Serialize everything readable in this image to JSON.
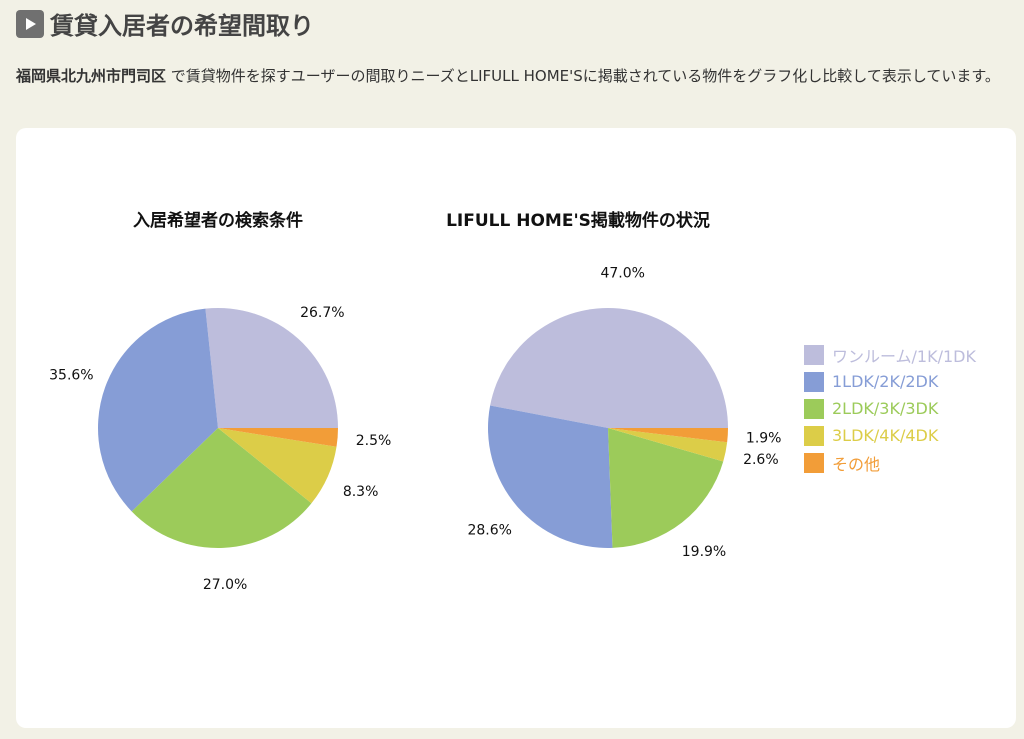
{
  "header": {
    "title": "賃貸入居者の希望間取り",
    "icon": "play-icon"
  },
  "description": {
    "area": "福岡県北九州市門司区",
    "text": " で賃貸物件を探すユーザーの間取りニーズとLIFULL HOME'Sに掲載されている物件をグラフ化し比較して表示しています。"
  },
  "legend": [
    {
      "label": "ワンルーム/1K/1DK",
      "color": "#bdbddc"
    },
    {
      "label": "1LDK/2K/2DK",
      "color": "#869dd6"
    },
    {
      "label": "2LDK/3K/3DK",
      "color": "#9ccb5a"
    },
    {
      "label": "3LDK/4K/4DK",
      "color": "#dccd48"
    },
    {
      "label": "その他",
      "color": "#f29d38"
    }
  ],
  "chart_data": [
    {
      "type": "pie",
      "title": "入居希望者の検索条件",
      "categories": [
        "ワンルーム/1K/1DK",
        "1LDK/2K/2DK",
        "2LDK/3K/3DK",
        "3LDK/4K/4DK",
        "その他"
      ],
      "values": [
        26.7,
        35.6,
        27.0,
        8.3,
        2.5
      ],
      "labels": [
        "26.7%",
        "35.6%",
        "27.0%",
        "8.3%",
        "2.5%"
      ],
      "legend": "right"
    },
    {
      "type": "pie",
      "title": "LIFULL HOME'S掲載物件の状況",
      "categories": [
        "ワンルーム/1K/1DK",
        "1LDK/2K/2DK",
        "2LDK/3K/3DK",
        "3LDK/4K/4DK",
        "その他"
      ],
      "values": [
        47.0,
        28.6,
        19.9,
        2.6,
        1.9
      ],
      "labels": [
        "47.0%",
        "28.6%",
        "19.9%",
        "2.6%",
        "1.9%"
      ],
      "legend": "right"
    }
  ]
}
